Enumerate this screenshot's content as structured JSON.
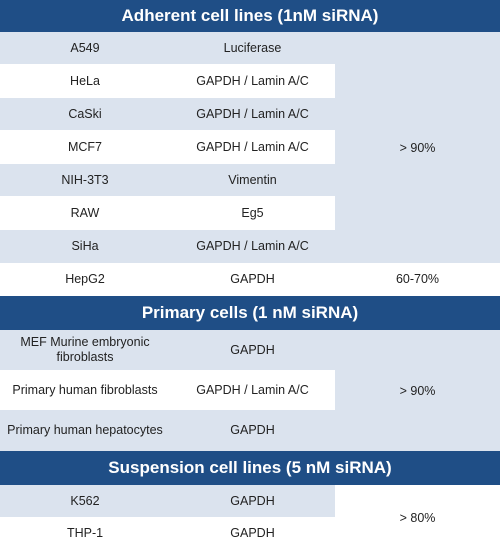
{
  "sections": [
    {
      "title": "Adherent cell lines (1nM siRNA)",
      "rows": [
        {
          "cell_line": "A549",
          "target": "Luciferase"
        },
        {
          "cell_line": "HeLa",
          "target": "GAPDH / Lamin A/C"
        },
        {
          "cell_line": "CaSki",
          "target": "GAPDH / Lamin A/C"
        },
        {
          "cell_line": "MCF7",
          "target": "GAPDH / Lamin A/C"
        },
        {
          "cell_line": "NIH-3T3",
          "target": "Vimentin"
        },
        {
          "cell_line": "RAW",
          "target": "Eg5"
        },
        {
          "cell_line": "SiHa",
          "target": "GAPDH / Lamin A/C"
        },
        {
          "cell_line": "HepG2",
          "target": "GAPDH",
          "efficiency": "60-70%"
        }
      ],
      "merged_efficiency": "> 90%"
    },
    {
      "title": "Primary cells (1 nM siRNA)",
      "rows": [
        {
          "cell_line": "MEF Murine embryonic fibroblasts",
          "target": "GAPDH"
        },
        {
          "cell_line": "Primary human fibroblasts",
          "target": "GAPDH / Lamin A/C"
        },
        {
          "cell_line": "Primary human hepatocytes",
          "target": "GAPDH"
        }
      ],
      "merged_efficiency": "> 90%"
    },
    {
      "title": "Suspension cell lines (5 nM siRNA)",
      "rows": [
        {
          "cell_line": "K562",
          "target": "GAPDH"
        },
        {
          "cell_line": "THP-1",
          "target": "GAPDH"
        }
      ],
      "merged_efficiency": "> 80%"
    }
  ],
  "colors": {
    "header_bg": "#1f4e86",
    "row_shade": "#dbe3ee",
    "row_white": "#ffffff"
  }
}
